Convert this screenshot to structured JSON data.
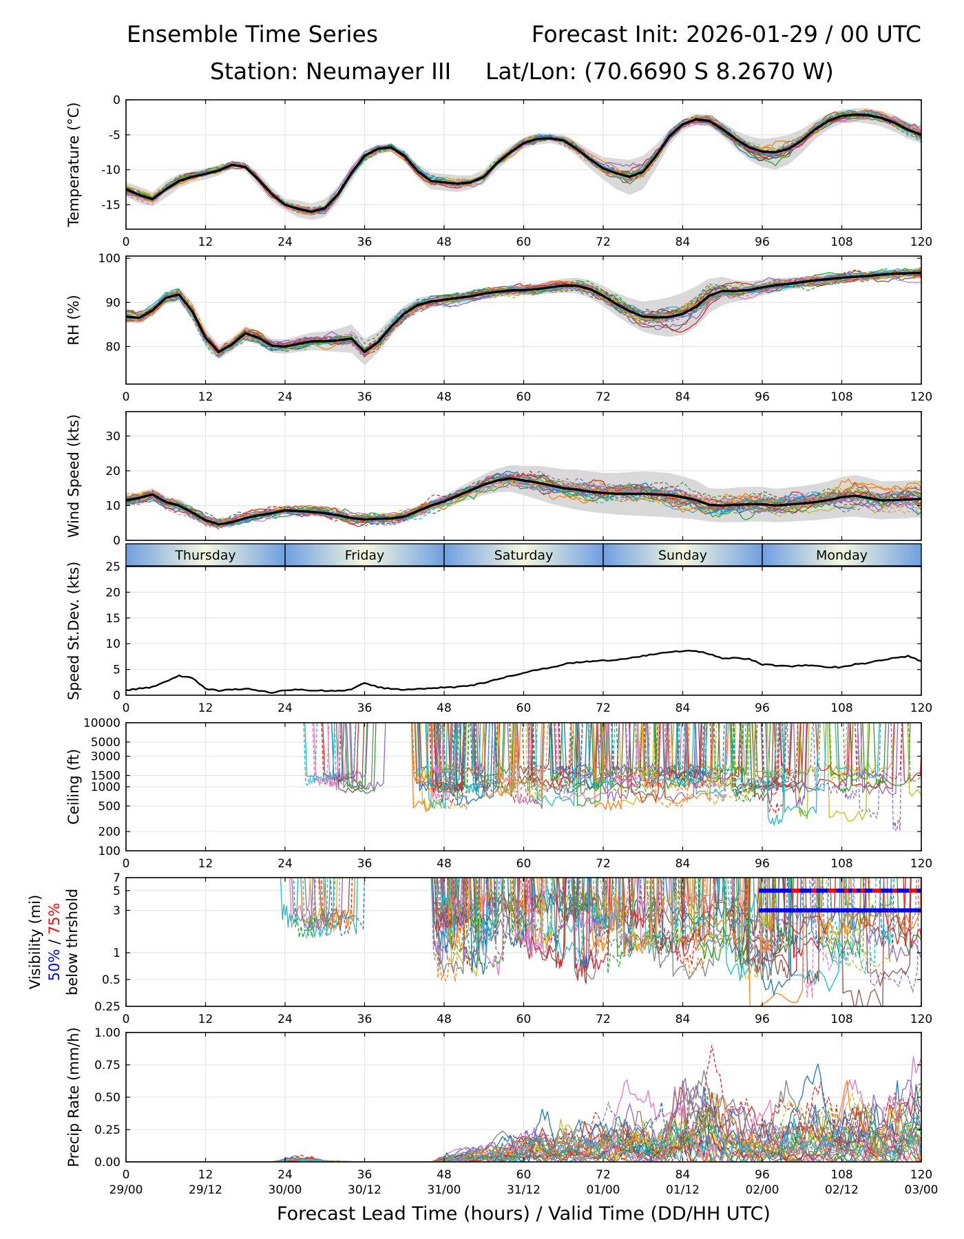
{
  "header": {
    "title": "Ensemble Time Series",
    "init": "Forecast Init: 2026-01-29 / 00 UTC",
    "station": "Station: Neumayer III",
    "latlon": "Lat/Lon: (70.6690 S 8.2670 W)"
  },
  "colors": {
    "members": [
      "#1f77b4",
      "#ff7f0e",
      "#2ca02c",
      "#d62728",
      "#9467bd",
      "#8c564b",
      "#e377c2",
      "#7f7f7f",
      "#bcbd22",
      "#17becf"
    ],
    "mean": "#000000",
    "spread": "#d9d9d9",
    "grid": "#e6e6e6",
    "vis50": "#0000ff",
    "vis75": "#ff0000",
    "day_edge": "#6f9fe0",
    "day_center": "#f5f8df"
  },
  "x_axis": {
    "ticks": [
      0,
      12,
      24,
      36,
      48,
      60,
      72,
      84,
      96,
      108,
      120
    ],
    "tick_labels": [
      "0",
      "12",
      "24",
      "36",
      "48",
      "60",
      "72",
      "84",
      "96",
      "108",
      "120"
    ],
    "valid_labels": [
      "29/00",
      "29/12",
      "30/00",
      "30/12",
      "31/00",
      "31/12",
      "01/00",
      "01/12",
      "02/00",
      "02/12",
      "03/00"
    ],
    "xlabel": "Forecast Lead Time (hours) / Valid Time (DD/HH UTC)",
    "range": [
      0,
      120
    ]
  },
  "days": [
    "Thursday",
    "Friday",
    "Saturday",
    "Sunday",
    "Monday"
  ],
  "chart_data": [
    {
      "id": "temperature",
      "type": "line",
      "ylabel": "Temperature (°C)",
      "ylim": [
        -18.5,
        0
      ],
      "yticks": [
        0,
        -5,
        -10,
        -15
      ],
      "ytick_labels": [
        "0",
        "-5",
        "-10",
        "-15"
      ],
      "x": [
        0,
        2,
        4,
        6,
        8,
        10,
        12,
        14,
        16,
        18,
        20,
        22,
        24,
        26,
        28,
        30,
        32,
        34,
        36,
        38,
        40,
        42,
        44,
        46,
        48,
        50,
        52,
        54,
        56,
        58,
        60,
        62,
        64,
        66,
        68,
        70,
        72,
        74,
        76,
        78,
        80,
        82,
        84,
        86,
        88,
        90,
        92,
        94,
        96,
        98,
        100,
        102,
        104,
        106,
        108,
        110,
        112,
        114,
        116,
        118,
        120
      ],
      "mean": [
        -12.8,
        -13.6,
        -14.2,
        -12.8,
        -11.6,
        -11.0,
        -10.6,
        -10.1,
        -9.3,
        -9.6,
        -11.4,
        -13.5,
        -15.0,
        -15.6,
        -16.0,
        -15.5,
        -13.5,
        -10.5,
        -8.0,
        -7.0,
        -6.8,
        -8.0,
        -10.2,
        -11.6,
        -11.8,
        -12.0,
        -11.8,
        -11.0,
        -9.0,
        -7.5,
        -6.2,
        -5.6,
        -5.5,
        -5.8,
        -7.0,
        -8.5,
        -9.8,
        -10.5,
        -11.0,
        -10.3,
        -8.0,
        -5.2,
        -3.5,
        -2.8,
        -3.0,
        -4.2,
        -5.6,
        -6.8,
        -7.4,
        -7.5,
        -7.0,
        -5.8,
        -4.2,
        -3.0,
        -2.3,
        -2.1,
        -2.2,
        -2.6,
        -3.3,
        -4.3,
        -5.0
      ],
      "spread_lo": [
        -13.8,
        -14.8,
        -15.2,
        -14.0,
        -12.6,
        -11.8,
        -11.4,
        -10.8,
        -9.8,
        -10.2,
        -12.4,
        -14.5,
        -15.8,
        -16.8,
        -17.2,
        -16.8,
        -14.6,
        -11.6,
        -8.8,
        -7.6,
        -7.4,
        -8.8,
        -11.2,
        -12.8,
        -13.0,
        -13.2,
        -12.8,
        -12.0,
        -10.0,
        -8.4,
        -7.0,
        -6.4,
        -6.2,
        -6.6,
        -8.0,
        -9.8,
        -11.4,
        -12.8,
        -13.6,
        -12.8,
        -9.8,
        -6.4,
        -4.4,
        -3.6,
        -3.8,
        -5.2,
        -7.0,
        -8.6,
        -9.6,
        -10.0,
        -9.2,
        -7.6,
        -5.6,
        -4.2,
        -3.4,
        -3.2,
        -3.4,
        -3.8,
        -4.6,
        -5.6,
        -6.2
      ],
      "spread_hi": [
        -11.8,
        -12.4,
        -13.2,
        -11.6,
        -10.6,
        -10.2,
        -9.8,
        -9.4,
        -8.8,
        -9.0,
        -10.4,
        -12.5,
        -14.2,
        -14.4,
        -14.8,
        -14.2,
        -12.4,
        -9.4,
        -7.2,
        -6.4,
        -6.2,
        -7.2,
        -9.2,
        -10.4,
        -10.6,
        -10.8,
        -10.8,
        -10.0,
        -8.0,
        -6.6,
        -5.4,
        -4.8,
        -4.8,
        -5.0,
        -6.0,
        -7.2,
        -8.2,
        -8.4,
        -8.6,
        -8.0,
        -6.4,
        -4.2,
        -2.8,
        -2.0,
        -2.2,
        -3.2,
        -4.4,
        -5.2,
        -5.6,
        -5.4,
        -5.0,
        -4.2,
        -3.0,
        -2.0,
        -1.4,
        -1.2,
        -1.2,
        -1.6,
        -2.2,
        -3.2,
        -4.0
      ],
      "noise_amp": 1.0
    },
    {
      "id": "rh",
      "type": "line",
      "ylabel": "RH (%)",
      "ylim": [
        71.5,
        100.5
      ],
      "yticks": [
        100,
        90,
        80
      ],
      "ytick_labels": [
        "100",
        "90",
        "80"
      ],
      "x": [
        0,
        2,
        4,
        6,
        8,
        10,
        12,
        14,
        16,
        18,
        20,
        22,
        24,
        26,
        28,
        30,
        32,
        34,
        36,
        38,
        40,
        42,
        44,
        46,
        48,
        50,
        52,
        54,
        56,
        58,
        60,
        62,
        64,
        66,
        68,
        70,
        72,
        74,
        76,
        78,
        80,
        82,
        84,
        86,
        88,
        90,
        92,
        94,
        96,
        98,
        100,
        102,
        104,
        106,
        108,
        110,
        112,
        114,
        116,
        118,
        120
      ],
      "mean": [
        86.8,
        86.5,
        88.2,
        91.0,
        91.8,
        88.0,
        82.0,
        78.8,
        80.5,
        83.0,
        82.0,
        80.2,
        80.0,
        80.6,
        81.2,
        81.2,
        81.4,
        81.8,
        78.8,
        81.0,
        84.5,
        87.5,
        89.4,
        90.2,
        90.6,
        91.0,
        91.4,
        92.0,
        92.4,
        92.7,
        92.8,
        93.0,
        93.4,
        93.8,
        93.8,
        93.0,
        91.5,
        89.6,
        88.0,
        86.8,
        86.6,
        86.7,
        87.4,
        89.0,
        91.5,
        92.6,
        92.6,
        92.8,
        93.4,
        93.9,
        94.2,
        94.6,
        95.0,
        95.3,
        95.6,
        95.8,
        96.0,
        96.3,
        96.5,
        96.6,
        96.7
      ],
      "spread_lo": [
        85.6,
        85.2,
        86.8,
        89.6,
        90.2,
        86.0,
        80.0,
        77.2,
        79.0,
        81.4,
        80.4,
        78.6,
        78.4,
        78.8,
        79.2,
        79.0,
        78.8,
        78.6,
        75.8,
        78.6,
        82.4,
        85.8,
        87.8,
        88.8,
        89.4,
        89.8,
        90.2,
        90.8,
        91.2,
        91.5,
        91.6,
        91.8,
        92.0,
        92.2,
        92.0,
        91.0,
        89.2,
        87.0,
        85.0,
        83.4,
        82.6,
        82.2,
        82.6,
        84.4,
        87.6,
        89.4,
        90.2,
        90.8,
        91.6,
        92.3,
        92.8,
        93.4,
        93.8,
        94.2,
        94.5,
        94.8,
        95.0,
        95.3,
        95.5,
        95.6,
        95.7
      ],
      "spread_hi": [
        88.0,
        87.8,
        89.6,
        92.4,
        93.4,
        90.0,
        84.0,
        80.4,
        82.0,
        84.6,
        83.6,
        81.8,
        81.6,
        82.4,
        83.2,
        83.4,
        84.0,
        85.0,
        81.8,
        83.4,
        86.6,
        89.2,
        91.0,
        91.6,
        91.8,
        92.2,
        92.6,
        93.2,
        93.6,
        93.9,
        94.0,
        94.2,
        94.8,
        95.4,
        95.6,
        95.0,
        93.8,
        92.2,
        91.0,
        90.2,
        90.6,
        91.2,
        92.2,
        93.6,
        95.4,
        95.8,
        95.0,
        94.8,
        95.2,
        95.5,
        95.6,
        95.8,
        96.2,
        96.4,
        96.7,
        96.8,
        97.0,
        97.3,
        97.5,
        97.6,
        97.7
      ],
      "noise_amp": 2.6
    },
    {
      "id": "wind",
      "type": "line",
      "ylabel": "Wind Speed (kts)",
      "ylim": [
        0,
        37
      ],
      "yticks": [
        0,
        10,
        20,
        30
      ],
      "ytick_labels": [
        "0",
        "10",
        "20",
        "30"
      ],
      "x": [
        0,
        2,
        4,
        6,
        8,
        10,
        12,
        14,
        16,
        18,
        20,
        22,
        24,
        26,
        28,
        30,
        32,
        34,
        36,
        38,
        40,
        42,
        44,
        46,
        48,
        50,
        52,
        54,
        56,
        58,
        60,
        62,
        64,
        66,
        68,
        70,
        72,
        74,
        76,
        78,
        80,
        82,
        84,
        86,
        88,
        90,
        92,
        94,
        96,
        98,
        100,
        102,
        104,
        106,
        108,
        110,
        112,
        114,
        116,
        118,
        120
      ],
      "mean": [
        11.5,
        12.2,
        13.2,
        11.0,
        10.0,
        8.0,
        5.8,
        4.6,
        5.2,
        6.4,
        7.2,
        7.8,
        8.6,
        8.4,
        8.2,
        7.8,
        7.2,
        6.4,
        6.0,
        6.2,
        6.3,
        6.8,
        8.4,
        10.0,
        11.2,
        12.8,
        14.4,
        16.0,
        17.2,
        17.8,
        17.2,
        16.6,
        15.8,
        15.0,
        14.6,
        14.0,
        13.6,
        13.4,
        13.4,
        13.4,
        13.2,
        13.0,
        12.4,
        11.6,
        10.2,
        10.0,
        10.2,
        10.4,
        10.4,
        10.0,
        10.3,
        10.6,
        11.0,
        11.6,
        12.4,
        12.8,
        12.2,
        11.5,
        11.6,
        11.8,
        11.9
      ],
      "spread_lo": [
        10.0,
        10.6,
        11.4,
        9.4,
        8.2,
        6.4,
        4.6,
        3.6,
        4.2,
        5.4,
        6.2,
        6.8,
        7.6,
        7.4,
        7.2,
        6.8,
        6.2,
        5.4,
        5.0,
        5.2,
        5.3,
        5.6,
        7.0,
        8.4,
        9.6,
        10.6,
        11.8,
        13.0,
        13.8,
        14.0,
        13.0,
        11.8,
        10.6,
        9.6,
        8.8,
        8.2,
        7.8,
        7.4,
        7.2,
        7.0,
        6.8,
        6.6,
        6.4,
        6.0,
        5.4,
        5.2,
        5.2,
        5.4,
        5.4,
        5.2,
        5.4,
        5.6,
        5.8,
        6.2,
        6.6,
        6.8,
        6.4,
        6.0,
        6.2,
        6.4,
        6.6
      ],
      "spread_hi": [
        13.0,
        13.8,
        15.0,
        12.6,
        11.8,
        9.6,
        7.0,
        5.6,
        6.2,
        7.4,
        8.2,
        8.8,
        9.6,
        9.4,
        9.2,
        8.8,
        8.2,
        7.4,
        7.0,
        7.2,
        7.3,
        8.0,
        9.8,
        11.6,
        12.8,
        15.0,
        17.0,
        19.0,
        20.6,
        21.6,
        21.4,
        21.4,
        21.0,
        20.4,
        20.4,
        19.8,
        19.4,
        19.4,
        19.6,
        19.8,
        19.6,
        19.4,
        18.4,
        17.2,
        15.0,
        14.8,
        15.2,
        15.4,
        15.4,
        14.8,
        15.2,
        15.6,
        16.2,
        17.0,
        18.2,
        18.8,
        18.0,
        17.0,
        17.0,
        17.2,
        17.2
      ],
      "noise_amp": 4.0
    },
    {
      "id": "stdev",
      "type": "line",
      "ylabel": "Speed St.Dev. (kts)",
      "ylim": [
        0,
        25
      ],
      "yticks": [
        0,
        5,
        10,
        15,
        20,
        25
      ],
      "ytick_labels": [
        "0",
        "5",
        "10",
        "15",
        "20",
        "25"
      ],
      "x": [
        0,
        2,
        4,
        6,
        8,
        10,
        12,
        14,
        16,
        18,
        20,
        22,
        24,
        26,
        28,
        30,
        32,
        34,
        36,
        38,
        40,
        42,
        44,
        46,
        48,
        50,
        52,
        54,
        56,
        58,
        60,
        62,
        64,
        66,
        68,
        70,
        72,
        74,
        76,
        78,
        80,
        82,
        84,
        86,
        88,
        90,
        92,
        94,
        96,
        98,
        100,
        102,
        104,
        106,
        108,
        110,
        112,
        114,
        116,
        118,
        120
      ],
      "values": [
        1.0,
        1.3,
        1.6,
        2.6,
        3.8,
        3.4,
        1.2,
        0.9,
        1.1,
        1.3,
        0.9,
        0.5,
        0.9,
        1.1,
        1.0,
        0.9,
        0.8,
        1.2,
        2.3,
        1.6,
        1.2,
        1.1,
        1.2,
        1.4,
        1.5,
        1.6,
        1.9,
        2.4,
        3.1,
        3.8,
        4.3,
        4.9,
        5.4,
        6.0,
        6.4,
        6.6,
        6.7,
        6.9,
        7.2,
        7.6,
        8.0,
        8.4,
        8.6,
        8.6,
        8.0,
        7.1,
        7.2,
        7.0,
        6.0,
        5.8,
        5.6,
        5.8,
        5.7,
        5.5,
        5.4,
        6.0,
        6.3,
        6.8,
        7.2,
        7.6,
        6.6
      ]
    },
    {
      "id": "ceiling",
      "type": "line",
      "ylabel": "Ceiling (ft)",
      "scale": "log",
      "ylim": [
        100,
        10000
      ],
      "yticks": [
        10000,
        5000,
        3000,
        1500,
        1000,
        500,
        200,
        100
      ],
      "ytick_labels": [
        "10000",
        "5000",
        "3000",
        "1500",
        "1000",
        "500",
        "200",
        "100"
      ],
      "noise_amp": 0.45
    },
    {
      "id": "visibility",
      "type": "line",
      "ylabel": "Visibility (mi)",
      "ylabel_50": "50%",
      "ylabel_sep": " / ",
      "ylabel_75": "75%",
      "ylabel_below": "below thrshold",
      "scale": "log",
      "ylim": [
        0.25,
        7
      ],
      "yticks": [
        7,
        5,
        3,
        1,
        0.5,
        0.25
      ],
      "ytick_labels": [
        "7",
        "5",
        "3",
        "1",
        "0.5",
        "0.25"
      ],
      "threshold_bars": [
        {
          "level": 5,
          "start": 95.5,
          "end": 120,
          "color": "mixed"
        },
        {
          "level": 3,
          "start": 95.5,
          "end": 120,
          "color": "blue"
        }
      ]
    },
    {
      "id": "precip",
      "type": "line",
      "ylabel": "Precip Rate (mm/h)",
      "ylim": [
        0,
        1.0
      ],
      "yticks": [
        1.0,
        0.75,
        0.5,
        0.25,
        0.0
      ],
      "ytick_labels": [
        "1.00",
        "0.75",
        "0.50",
        "0.25",
        "0.00"
      ],
      "x": [
        0,
        12,
        22,
        24,
        26,
        28,
        30,
        36,
        46,
        48,
        52,
        56,
        60,
        64,
        68,
        72,
        76,
        80,
        84,
        88,
        90,
        96,
        100,
        104,
        108,
        112,
        116,
        120
      ],
      "envelope": [
        0,
        0,
        0,
        0.03,
        0.05,
        0.04,
        0.01,
        0,
        0,
        0.05,
        0.12,
        0.18,
        0.28,
        0.32,
        0.3,
        0.4,
        0.45,
        0.35,
        0.6,
        0.8,
        0.55,
        0.35,
        0.45,
        0.5,
        0.55,
        0.58,
        0.55,
        0.6
      ]
    }
  ]
}
